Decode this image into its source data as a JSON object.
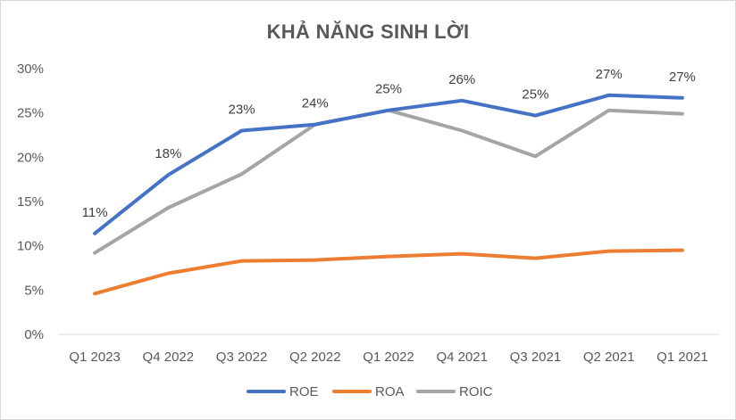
{
  "chart_data": {
    "type": "line",
    "title": "KHẢ NĂNG SINH LỜI",
    "categories": [
      "Q1 2023",
      "Q4 2022",
      "Q3 2022",
      "Q2 2022",
      "Q1 2022",
      "Q4 2021",
      "Q3 2021",
      "Q2 2021",
      "Q1 2021"
    ],
    "series": [
      {
        "name": "ROE",
        "color": "#4472c4",
        "values": [
          11.4,
          18.0,
          23.0,
          23.7,
          25.3,
          26.4,
          24.7,
          27.0,
          26.7
        ],
        "data_labels": [
          "11%",
          "18%",
          "23%",
          "24%",
          "25%",
          "26%",
          "25%",
          "27%",
          "27%"
        ]
      },
      {
        "name": "ROA",
        "color": "#ed7d31",
        "values": [
          4.6,
          6.9,
          8.3,
          8.4,
          8.8,
          9.1,
          8.6,
          9.4,
          9.5
        ]
      },
      {
        "name": "ROIC",
        "color": "#a5a5a5",
        "values": [
          9.2,
          14.3,
          18.1,
          23.7,
          25.3,
          23.0,
          20.1,
          25.3,
          24.9
        ]
      }
    ],
    "yticks": [
      "0%",
      "5%",
      "10%",
      "15%",
      "20%",
      "25%",
      "30%"
    ],
    "ylim": [
      0,
      30
    ],
    "grid": false,
    "legend_position": "bottom"
  }
}
